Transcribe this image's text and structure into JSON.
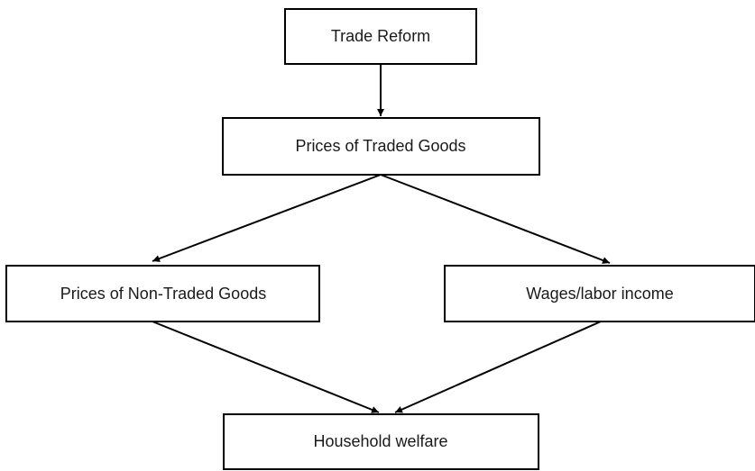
{
  "nodes": [
    {
      "label": "Trade Reform"
    },
    {
      "label": "Prices of Traded Goods"
    },
    {
      "label": "Prices of Non-Traded Goods"
    },
    {
      "label": "Wages/labor income"
    },
    {
      "label": "Household welfare"
    }
  ]
}
